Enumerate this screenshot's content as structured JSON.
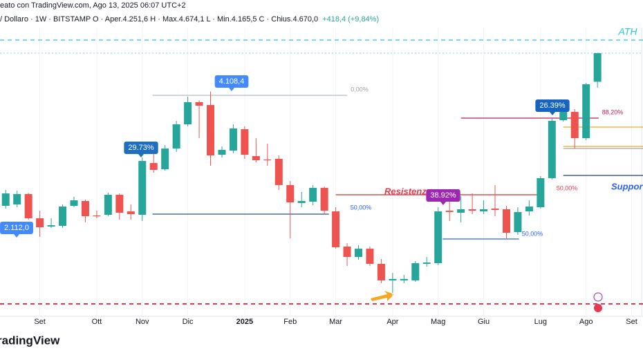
{
  "chart_data": {
    "type": "candlestick",
    "header_line1": "eato con TradingView.com, Ago 13, 2025 06:07 UTC+2",
    "header_line2": "/ Dollaro · 1W · BITSTAMP   O · Aper.4.251,6   H · Max.4.674,1   L · Min.4.165,5   C · Chius.4.670,0",
    "header_change": "+418,4 (+9,84%)",
    "footer": "radingView",
    "up_color": "#26a69a",
    "down_color": "#ef5350",
    "xlim": [
      -0.5,
      56
    ],
    "ylim": [
      818,
      5448
    ],
    "xticks": [
      {
        "value": 3,
        "label": "Set"
      },
      {
        "value": 8,
        "label": "Ott"
      },
      {
        "value": 12,
        "label": "Nov"
      },
      {
        "value": 16,
        "label": "Dic"
      },
      {
        "value": 21,
        "label": "2025"
      },
      {
        "value": 25,
        "label": "Feb"
      },
      {
        "value": 29,
        "label": "Mar"
      },
      {
        "value": 34,
        "label": "Apr"
      },
      {
        "value": 38,
        "label": "Mag"
      },
      {
        "value": 42,
        "label": "Giu"
      },
      {
        "value": 47,
        "label": "Lug"
      },
      {
        "value": 51,
        "label": "Ago"
      },
      {
        "value": 55,
        "label": "Set"
      }
    ],
    "candles": [
      {
        "open": 2435,
        "high": 2668,
        "low": 2395,
        "close": 2617
      },
      {
        "open": 2455,
        "high": 2658,
        "low": 2415,
        "close": 2607
      },
      {
        "open": 2607,
        "high": 2627,
        "low": 2233,
        "close": 2253
      },
      {
        "open": 2253,
        "high": 2364,
        "low": 1981,
        "close": 2122
      },
      {
        "open": 2132,
        "high": 2253,
        "low": 2112,
        "close": 2152
      },
      {
        "open": 2142,
        "high": 2455,
        "low": 2112,
        "close": 2425
      },
      {
        "open": 2435,
        "high": 2567,
        "low": 2415,
        "close": 2516
      },
      {
        "open": 2506,
        "high": 2526,
        "low": 2193,
        "close": 2284
      },
      {
        "open": 2294,
        "high": 2364,
        "low": 2253,
        "close": 2284
      },
      {
        "open": 2304,
        "high": 2627,
        "low": 2284,
        "close": 2597
      },
      {
        "open": 2597,
        "high": 2617,
        "low": 2233,
        "close": 2334
      },
      {
        "open": 2354,
        "high": 2455,
        "low": 2233,
        "close": 2314
      },
      {
        "open": 2304,
        "high": 3143,
        "low": 2213,
        "close": 3092
      },
      {
        "open": 3062,
        "high": 3305,
        "low": 2921,
        "close": 2961
      },
      {
        "open": 2971,
        "high": 3325,
        "low": 2951,
        "close": 3274
      },
      {
        "open": 3274,
        "high": 3679,
        "low": 3224,
        "close": 3628
      },
      {
        "open": 3628,
        "high": 4033,
        "low": 3598,
        "close": 3952
      },
      {
        "open": 3952,
        "high": 3982,
        "low": 3426,
        "close": 3901
      },
      {
        "open": 3911,
        "high": 4108.4,
        "low": 3022,
        "close": 3173
      },
      {
        "open": 3183,
        "high": 3305,
        "low": 3143,
        "close": 3254
      },
      {
        "open": 3244,
        "high": 3628,
        "low": 3204,
        "close": 3568
      },
      {
        "open": 3557,
        "high": 3598,
        "low": 3123,
        "close": 3183
      },
      {
        "open": 3163,
        "high": 3426,
        "low": 3072,
        "close": 3103
      },
      {
        "open": 3113,
        "high": 3345,
        "low": 3022,
        "close": 3103
      },
      {
        "open": 3123,
        "high": 3173,
        "low": 2668,
        "close": 2739
      },
      {
        "open": 2739,
        "high": 2799,
        "low": 1960,
        "close": 2486
      },
      {
        "open": 2476,
        "high": 2638,
        "low": 2415,
        "close": 2506
      },
      {
        "open": 2496,
        "high": 2739,
        "low": 2445,
        "close": 2698
      },
      {
        "open": 2698,
        "high": 2718,
        "low": 2314,
        "close": 2364
      },
      {
        "open": 2354,
        "high": 2415,
        "low": 1808,
        "close": 1829
      },
      {
        "open": 1839,
        "high": 1889,
        "low": 1556,
        "close": 1687
      },
      {
        "open": 1687,
        "high": 1859,
        "low": 1647,
        "close": 1808
      },
      {
        "open": 1808,
        "high": 1839,
        "low": 1556,
        "close": 1586
      },
      {
        "open": 1586,
        "high": 1657,
        "low": 1303,
        "close": 1343
      },
      {
        "open": 1343,
        "high": 1455,
        "low": 1161,
        "close": 1364
      },
      {
        "open": 1343,
        "high": 1424,
        "low": 1303,
        "close": 1364
      },
      {
        "open": 1343,
        "high": 1627,
        "low": 1323,
        "close": 1596
      },
      {
        "open": 1586,
        "high": 1687,
        "low": 1546,
        "close": 1606
      },
      {
        "open": 1596,
        "high": 2415,
        "low": 1566,
        "close": 2354
      },
      {
        "open": 2364,
        "high": 2496,
        "low": 2213,
        "close": 2344
      },
      {
        "open": 2334,
        "high": 2577,
        "low": 2193,
        "close": 2385
      },
      {
        "open": 2385,
        "high": 2617,
        "low": 2314,
        "close": 2364
      },
      {
        "open": 2354,
        "high": 2516,
        "low": 2314,
        "close": 2385
      },
      {
        "open": 2395,
        "high": 2739,
        "low": 2284,
        "close": 2375
      },
      {
        "open": 2385,
        "high": 2435,
        "low": 1960,
        "close": 2041
      },
      {
        "open": 2051,
        "high": 2415,
        "low": 2011,
        "close": 2344
      },
      {
        "open": 2354,
        "high": 2516,
        "low": 2294,
        "close": 2425
      },
      {
        "open": 2415,
        "high": 2870,
        "low": 2395,
        "close": 2840
      },
      {
        "open": 2840,
        "high": 3729,
        "low": 2819,
        "close": 3679
      },
      {
        "open": 3689,
        "high": 3881,
        "low": 3669,
        "close": 3820
      },
      {
        "open": 3810,
        "high": 3851,
        "low": 3274,
        "close": 3426
      },
      {
        "open": 3426,
        "high": 4235,
        "low": 3396,
        "close": 4215
      },
      {
        "open": 4251.6,
        "high": 4674.1,
        "low": 4165.5,
        "close": 4670.0
      }
    ],
    "levels": [
      {
        "value": 4862,
        "from": -0.5,
        "to": 56,
        "color": "#26c6da",
        "style": "dashed"
      },
      {
        "value": 4670,
        "from": -0.5,
        "to": 56,
        "color": "#80deea",
        "style": "dotted"
      },
      {
        "value": 4053,
        "from": 12.9,
        "to": 30,
        "color": "#b0bec5",
        "style": "solid"
      },
      {
        "value": 2314,
        "from": 12.9,
        "to": 28.4,
        "color": "#2a4d8f",
        "style": "solid"
      },
      {
        "value": 2597,
        "from": 29,
        "to": 46.9,
        "color": "#d32f2f",
        "style": "solid"
      },
      {
        "value": 1950,
        "from": 38.4,
        "to": 45.1,
        "color": "#2962ff",
        "style": "solid"
      },
      {
        "value": 3719,
        "from": 40,
        "to": 52.1,
        "color": "#c2185b",
        "style": "solid"
      },
      {
        "value": 3588,
        "from": 49,
        "to": 56,
        "color": "#f9a825",
        "style": "solid"
      },
      {
        "value": 3305,
        "from": 49,
        "to": 56,
        "color": "#f9a825",
        "style": "solid"
      },
      {
        "value": 3274,
        "from": 49,
        "to": 56,
        "color": "#9e9e9e",
        "style": "solid"
      },
      {
        "value": 2880,
        "from": 49,
        "to": 56,
        "color": "#1e3a8a",
        "style": "solid"
      },
      {
        "value": 1000,
        "from": -0.5,
        "to": 56,
        "color": "#e53950",
        "style": "dashed"
      }
    ],
    "annotations": [
      {
        "text": "ATH",
        "color": "#26c6da"
      },
      {
        "text": "0,00%",
        "color": "#9e9e9e"
      },
      {
        "text": "4.108,4",
        "color": "#448aff"
      },
      {
        "text": "29.73%",
        "color": "#1e6fc0"
      },
      {
        "text": "2.112,0",
        "color": "#448aff"
      },
      {
        "text": "50,00%",
        "color": "#2962ff"
      },
      {
        "text": "Resistenza",
        "color": "#e53950"
      },
      {
        "text": "38.92%",
        "color": "#9c27b0"
      },
      {
        "text": "50,00%",
        "color": "#2962ff"
      },
      {
        "text": "26.39%",
        "color": "#1565c0"
      },
      {
        "text": "88,20%",
        "color": "#c2185b"
      },
      {
        "text": "50,00%",
        "color": "#e53950"
      },
      {
        "text": "Suppor",
        "color": "#2962ff"
      }
    ]
  }
}
